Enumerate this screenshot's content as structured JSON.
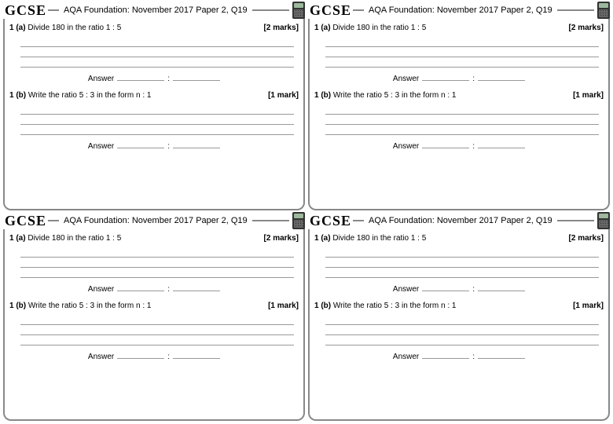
{
  "worksheet": {
    "badge": "GCSE",
    "title": "AQA Foundation: November 2017 Paper 2, Q19",
    "work_line_color": "#999999",
    "border_color": "#888888",
    "questions": [
      {
        "label_num": "1 (a)",
        "text": "Divide 180 in the ratio 1 : 5",
        "marks": "[2 marks]",
        "work_lines": 3,
        "answer_label": "Answer",
        "answer_blanks": 2,
        "separator": ":"
      },
      {
        "label_num": "1 (b)",
        "text": "Write the ratio 5 : 3 in the form  n : 1",
        "marks": "[1 mark]",
        "work_lines": 3,
        "answer_label": "Answer",
        "answer_blanks": 2,
        "separator": ":"
      }
    ],
    "grid": {
      "rows": 2,
      "cols": 2
    }
  }
}
